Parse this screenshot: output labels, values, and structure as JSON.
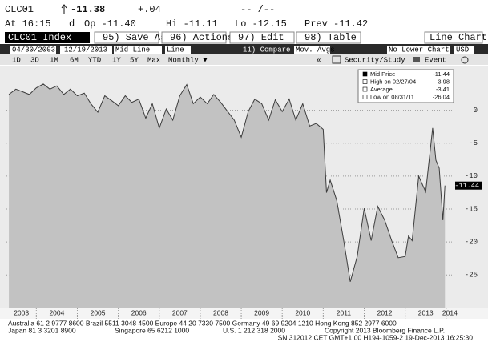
{
  "header": {
    "ticker": "CLC01",
    "last": "-11.38",
    "change": "+.04",
    "date": "-- /--",
    "time": "At 16:15",
    "flag": "d",
    "open": "Op -11.40",
    "high": "Hi -11.11",
    "low": "Lo -12.15",
    "prev": "Prev -11.42"
  },
  "toolbar": {
    "security": "CLC01 Index",
    "buttons": [
      "95) Save As",
      "96) Actions",
      "97) Edit",
      "98) Table"
    ],
    "chart_type": "Line Chart"
  },
  "controls": {
    "start": "04/30/2003",
    "end": "12/19/2013",
    "mid": "Mid Line",
    "line": "Line",
    "compare": "11) Compare",
    "mov_avgs": "Mov. Avgs",
    "lower": "No Lower Chart",
    "currency": "USD",
    "periods": [
      "1D",
      "3D",
      "1M",
      "6M",
      "YTD",
      "1Y",
      "5Y",
      "Max"
    ],
    "frequency": "Monthly ▼",
    "back": "«",
    "study": "Security/Study",
    "event": "Event"
  },
  "chart_data": {
    "type": "area",
    "legend": "top-right",
    "grid": true,
    "x": [
      2003.33,
      2003.5,
      2003.67,
      2003.83,
      2004.0,
      2004.17,
      2004.33,
      2004.5,
      2004.67,
      2004.83,
      2005.0,
      2005.17,
      2005.33,
      2005.5,
      2005.67,
      2005.83,
      2006.0,
      2006.17,
      2006.33,
      2006.5,
      2006.67,
      2006.83,
      2007.0,
      2007.17,
      2007.33,
      2007.5,
      2007.67,
      2007.83,
      2008.0,
      2008.17,
      2008.33,
      2008.5,
      2008.67,
      2008.83,
      2009.0,
      2009.17,
      2009.33,
      2009.5,
      2009.67,
      2009.83,
      2010.0,
      2010.17,
      2010.33,
      2010.5,
      2010.67,
      2010.83,
      2011.0,
      2011.08,
      2011.17,
      2011.33,
      2011.5,
      2011.66,
      2011.83,
      2012.0,
      2012.17,
      2012.33,
      2012.5,
      2012.67,
      2012.83,
      2013.0,
      2013.08,
      2013.17,
      2013.33,
      2013.5,
      2013.67,
      2013.75,
      2013.83,
      2013.92,
      2013.97
    ],
    "series": [
      {
        "name": "Mid Price",
        "color": "#3c3c3c",
        "fill": "#c2c2c2",
        "values": [
          2.4,
          3.2,
          2.8,
          2.4,
          3.4,
          3.98,
          3.2,
          3.7,
          2.4,
          3.2,
          2.2,
          2.6,
          1.0,
          -0.3,
          2.2,
          1.5,
          0.7,
          2.2,
          1.2,
          1.7,
          -1.2,
          1.0,
          -2.7,
          0.2,
          -1.5,
          2.2,
          3.9,
          1.0,
          2.0,
          1.0,
          2.4,
          1.2,
          -0.2,
          -1.5,
          -4.1,
          -0.2,
          1.7,
          1.0,
          -1.5,
          1.6,
          -0.2,
          1.7,
          -1.5,
          1.0,
          -2.4,
          -2.0,
          -2.9,
          -12.5,
          -10.6,
          -13.7,
          -19.8,
          -26.04,
          -22.2,
          -14.9,
          -19.8,
          -14.6,
          -16.7,
          -19.8,
          -22.4,
          -22.2,
          -19.1,
          -19.8,
          -10.0,
          -12.4,
          -2.7,
          -7.6,
          -8.8,
          -16.7,
          -11.44
        ]
      }
    ],
    "last_value": -11.44,
    "stats": [
      {
        "label": "High on 02/27/04",
        "value": 3.98
      },
      {
        "label": "Average",
        "value": -3.41
      },
      {
        "label": "Low on 08/31/11",
        "value": -26.04
      }
    ],
    "xlim": [
      2003.27,
      2014.18
    ],
    "xticks": [
      2003,
      2004,
      2005,
      2006,
      2007,
      2008,
      2009,
      2010,
      2011,
      2012,
      2013,
      2014
    ],
    "ylim": [
      -28.5,
      6.4
    ],
    "yticks": [
      0,
      -5,
      -10,
      -15,
      -20,
      -25
    ]
  },
  "footer": {
    "lines": [
      "Australia 61 2 9777 8600 Brazil 5511 3048 4500 Europe 44 20 7330 7500 Germany 49 69 9204 1210 Hong Kong 852 2977 6000"
    ],
    "line2": [
      "Japan 81 3 3201 8900",
      "Singapore 65 6212 1000",
      "U.S. 1 212 318 2000",
      "Copyright 2013 Bloomberg Finance L.P."
    ],
    "line3": "SN 312012 CET  GMT+1:00 H194-1059-2 19-Dec-2013 16:25:30"
  }
}
